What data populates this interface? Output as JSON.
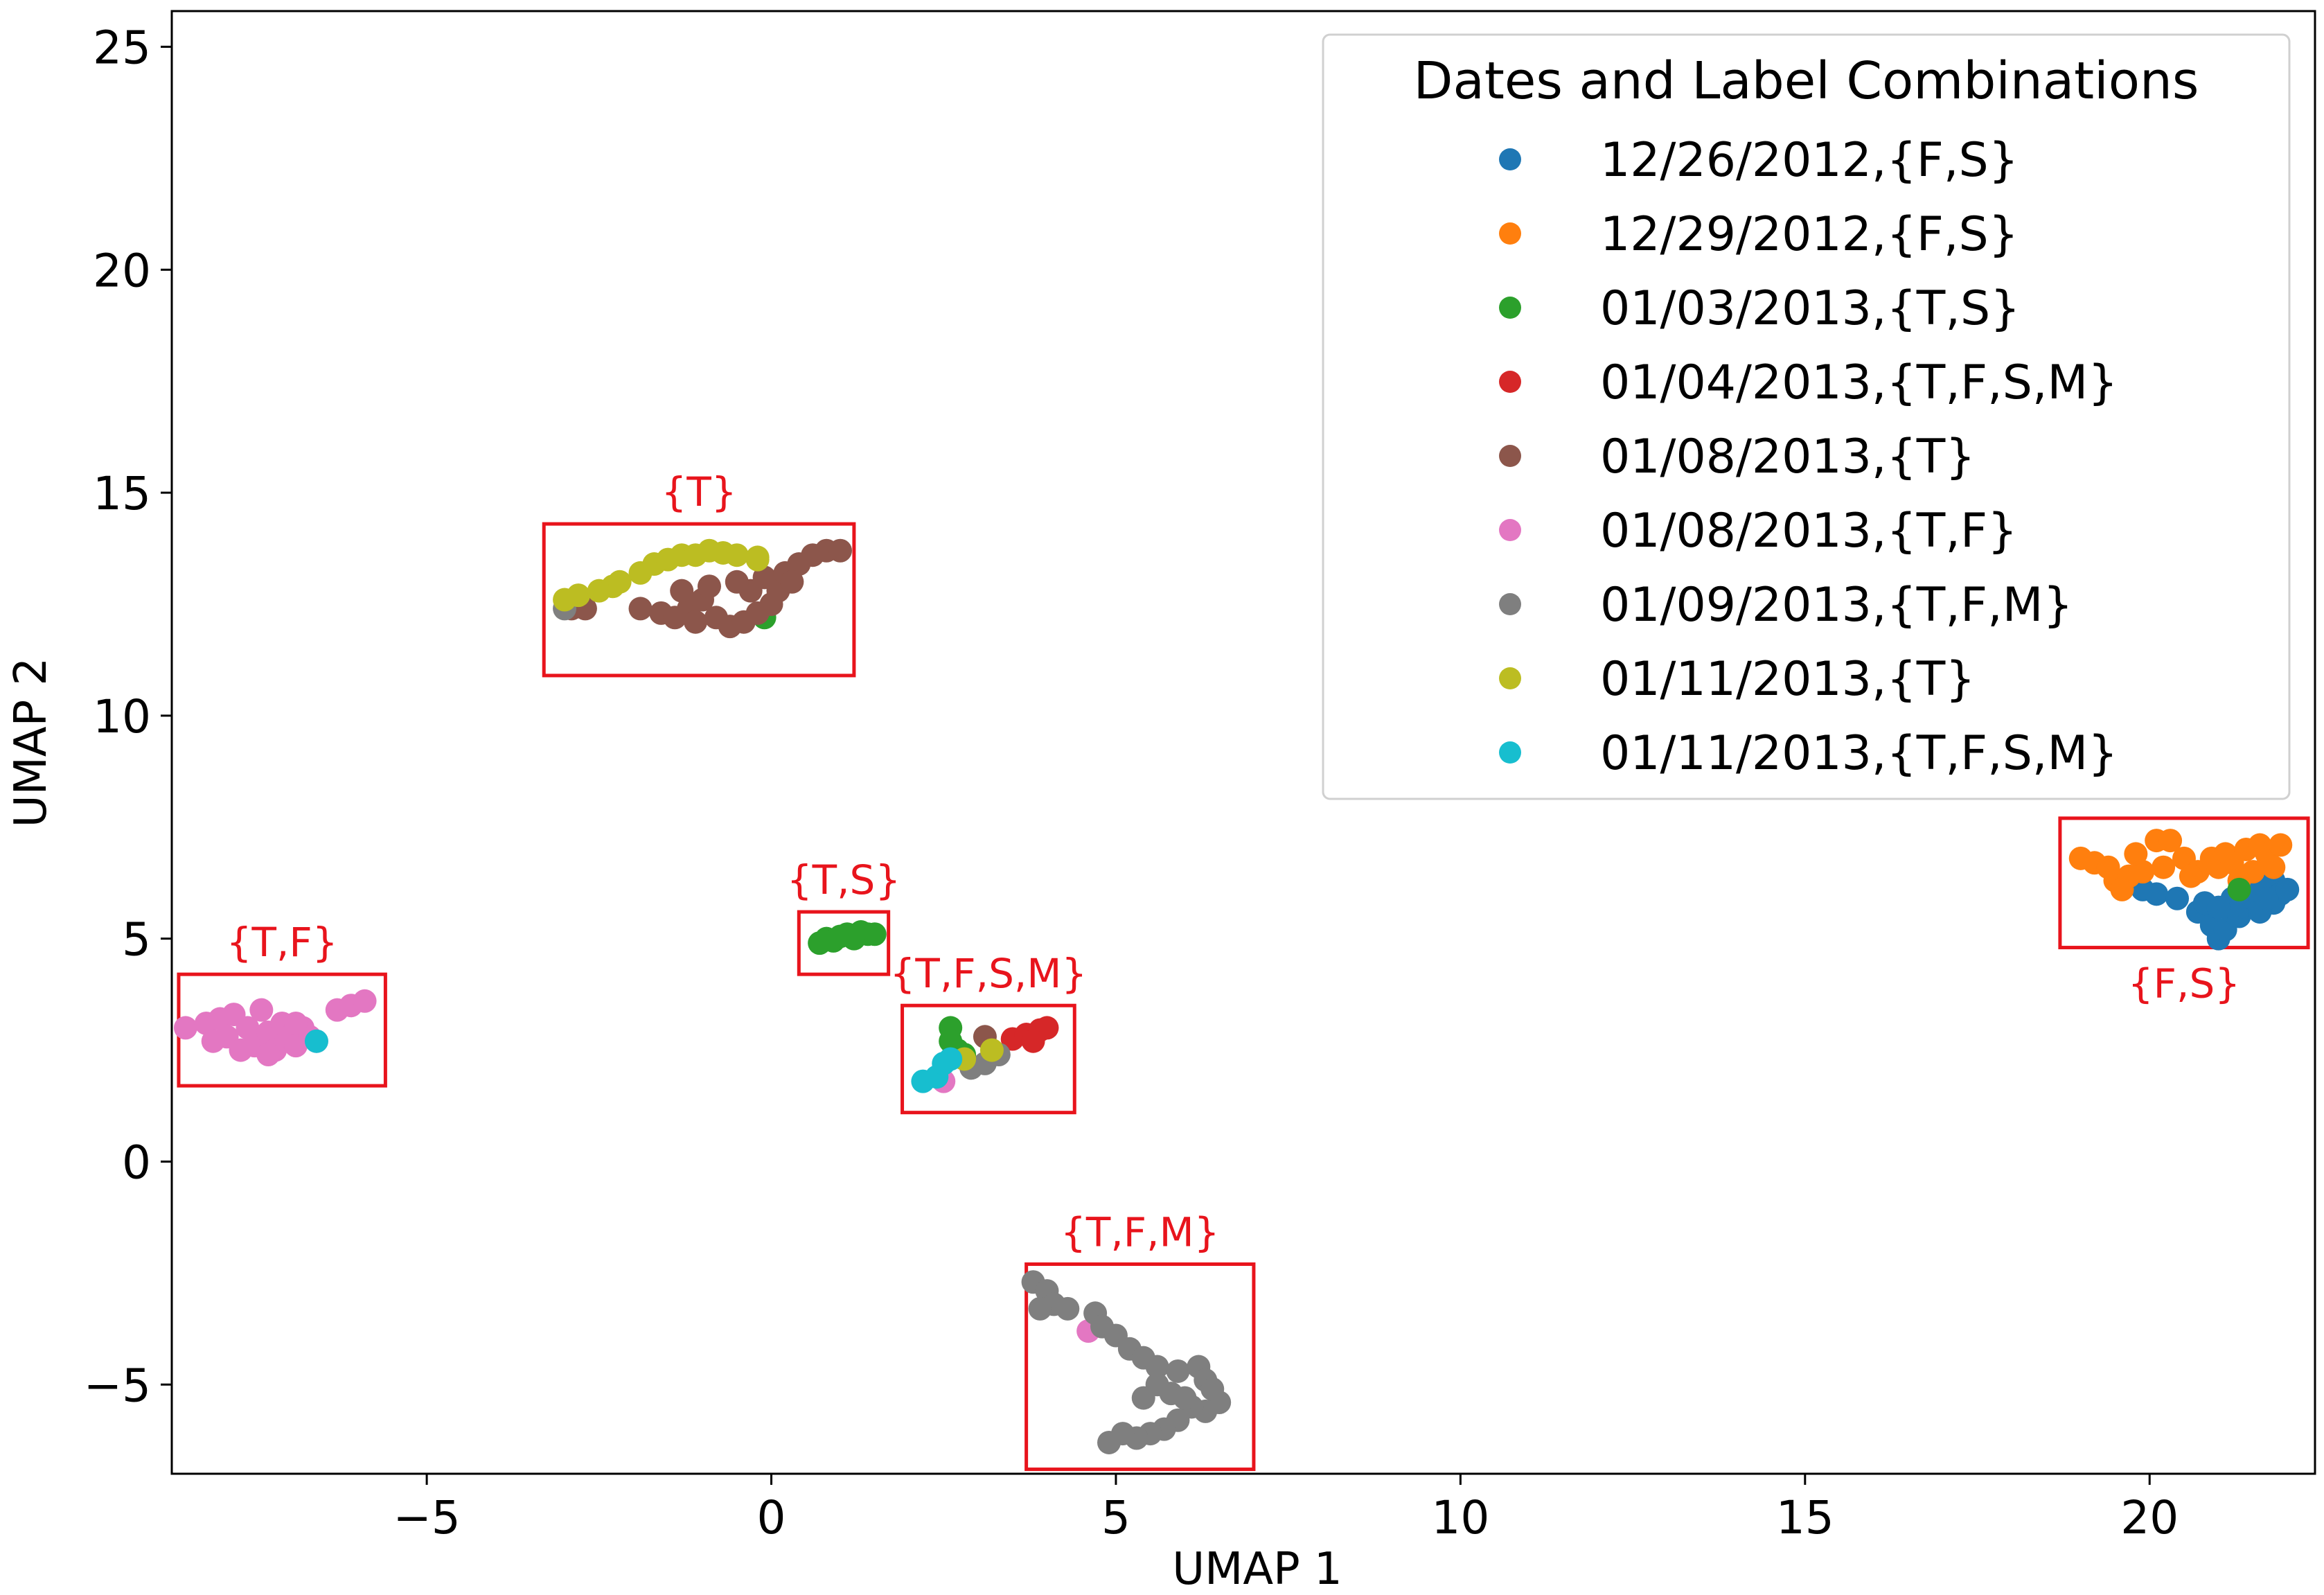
{
  "chart_data": {
    "type": "scatter",
    "title": "",
    "xlabel": "UMAP 1",
    "ylabel": "UMAP 2",
    "xlim": [
      -8.7,
      22.4
    ],
    "ylim": [
      -7.0,
      25.8
    ],
    "xticks": [
      -5,
      0,
      5,
      10,
      15,
      20
    ],
    "yticks": [
      -5,
      0,
      5,
      10,
      15,
      20,
      25
    ],
    "grid": false,
    "legend": {
      "title": "Dates and Label Combinations",
      "placement": "top-right"
    },
    "series": [
      {
        "name": "12/26/2012,{F,S}",
        "color": "#1f77b4",
        "points": [
          [
            19.9,
            6.1
          ],
          [
            20.1,
            6.0
          ],
          [
            20.4,
            5.9
          ],
          [
            20.7,
            5.6
          ],
          [
            20.9,
            5.3
          ],
          [
            21.0,
            5.0
          ],
          [
            21.1,
            5.2
          ],
          [
            21.2,
            5.6
          ],
          [
            21.3,
            5.5
          ],
          [
            21.4,
            5.7
          ],
          [
            21.5,
            5.9
          ],
          [
            21.6,
            6.2
          ],
          [
            21.7,
            6.6
          ],
          [
            21.8,
            6.3
          ],
          [
            21.9,
            6.0
          ],
          [
            21.8,
            5.8
          ],
          [
            21.6,
            5.6
          ],
          [
            21.5,
            6.1
          ],
          [
            21.7,
            5.9
          ],
          [
            22.0,
            6.1
          ],
          [
            21.2,
            5.9
          ],
          [
            20.8,
            5.8
          ],
          [
            21.0,
            5.7
          ]
        ]
      },
      {
        "name": "12/29/2012,{F,S}",
        "color": "#ff7f0e",
        "points": [
          [
            19.0,
            6.8
          ],
          [
            19.2,
            6.7
          ],
          [
            19.4,
            6.6
          ],
          [
            19.5,
            6.3
          ],
          [
            19.7,
            6.4
          ],
          [
            19.6,
            6.1
          ],
          [
            19.9,
            6.5
          ],
          [
            20.1,
            7.2
          ],
          [
            20.3,
            7.2
          ],
          [
            20.5,
            6.8
          ],
          [
            20.7,
            6.5
          ],
          [
            20.9,
            6.8
          ],
          [
            21.1,
            6.9
          ],
          [
            21.0,
            6.6
          ],
          [
            21.2,
            6.7
          ],
          [
            21.4,
            7.0
          ],
          [
            21.6,
            7.1
          ],
          [
            21.7,
            6.9
          ],
          [
            21.9,
            7.1
          ],
          [
            21.5,
            6.5
          ],
          [
            21.8,
            6.6
          ],
          [
            20.6,
            6.4
          ],
          [
            21.3,
            6.3
          ],
          [
            20.2,
            6.6
          ],
          [
            19.8,
            6.9
          ]
        ]
      },
      {
        "name": "01/03/2013,{T,S}",
        "color": "#2ca02c",
        "points": [
          [
            0.7,
            4.9
          ],
          [
            0.8,
            5.0
          ],
          [
            0.9,
            4.95
          ],
          [
            1.0,
            5.05
          ],
          [
            1.1,
            5.1
          ],
          [
            1.2,
            5.0
          ],
          [
            1.3,
            5.15
          ],
          [
            1.4,
            5.1
          ],
          [
            1.5,
            5.1
          ],
          [
            -0.1,
            12.2
          ],
          [
            2.6,
            3.0
          ],
          [
            2.6,
            2.7
          ],
          [
            2.7,
            2.5
          ],
          [
            2.8,
            2.4
          ],
          [
            21.3,
            6.1
          ]
        ]
      },
      {
        "name": "01/04/2013,{T,F,S,M}",
        "color": "#d62728",
        "points": [
          [
            3.5,
            2.75
          ],
          [
            3.7,
            2.85
          ],
          [
            3.9,
            2.95
          ],
          [
            4.0,
            3.0
          ],
          [
            3.8,
            2.7
          ]
        ]
      },
      {
        "name": "01/08/2013,{T}",
        "color": "#8c564b",
        "points": [
          [
            -2.9,
            12.4
          ],
          [
            -2.7,
            12.4
          ],
          [
            -1.9,
            12.4
          ],
          [
            -1.6,
            12.3
          ],
          [
            -1.4,
            12.2
          ],
          [
            -1.2,
            12.4
          ],
          [
            -1.0,
            12.6
          ],
          [
            -0.8,
            12.2
          ],
          [
            -0.6,
            12.0
          ],
          [
            -0.4,
            12.1
          ],
          [
            -0.2,
            12.3
          ],
          [
            0.0,
            12.5
          ],
          [
            0.1,
            12.8
          ],
          [
            -0.3,
            12.8
          ],
          [
            -0.1,
            13.1
          ],
          [
            0.2,
            13.2
          ],
          [
            0.4,
            13.4
          ],
          [
            0.6,
            13.6
          ],
          [
            0.8,
            13.7
          ],
          [
            1.0,
            13.7
          ],
          [
            -0.5,
            13.0
          ],
          [
            -0.9,
            12.9
          ],
          [
            -1.3,
            12.8
          ],
          [
            -1.1,
            12.1
          ],
          [
            0.3,
            13.0
          ],
          [
            3.1,
            2.8
          ]
        ]
      },
      {
        "name": "01/08/2013,{T,F}",
        "color": "#e377c2",
        "points": [
          [
            -8.5,
            3.0
          ],
          [
            -8.2,
            3.1
          ],
          [
            -8.0,
            3.2
          ],
          [
            -7.9,
            2.8
          ],
          [
            -7.8,
            3.3
          ],
          [
            -7.6,
            3.0
          ],
          [
            -7.5,
            2.6
          ],
          [
            -7.4,
            3.4
          ],
          [
            -7.3,
            2.9
          ],
          [
            -7.2,
            2.5
          ],
          [
            -7.1,
            3.1
          ],
          [
            -7.0,
            2.8
          ],
          [
            -6.9,
            2.6
          ],
          [
            -6.8,
            3.0
          ],
          [
            -6.7,
            2.8
          ],
          [
            -6.6,
            2.7
          ],
          [
            -7.7,
            2.5
          ],
          [
            -8.1,
            2.7
          ],
          [
            -6.3,
            3.4
          ],
          [
            -6.1,
            3.5
          ],
          [
            -5.9,
            3.6
          ],
          [
            -6.9,
            3.1
          ],
          [
            -7.3,
            2.4
          ],
          [
            2.5,
            1.8
          ],
          [
            4.6,
            -3.8
          ]
        ]
      },
      {
        "name": "01/09/2013,{T,F,M}",
        "color": "#7f7f7f",
        "points": [
          [
            3.8,
            -2.7
          ],
          [
            4.0,
            -2.9
          ],
          [
            4.1,
            -3.2
          ],
          [
            3.9,
            -3.3
          ],
          [
            4.3,
            -3.3
          ],
          [
            4.7,
            -3.4
          ],
          [
            4.8,
            -3.7
          ],
          [
            5.0,
            -3.9
          ],
          [
            5.2,
            -4.2
          ],
          [
            5.4,
            -4.4
          ],
          [
            5.6,
            -4.6
          ],
          [
            5.9,
            -4.7
          ],
          [
            6.2,
            -4.6
          ],
          [
            6.3,
            -4.9
          ],
          [
            6.4,
            -5.1
          ],
          [
            6.5,
            -5.4
          ],
          [
            6.3,
            -5.6
          ],
          [
            6.1,
            -5.5
          ],
          [
            5.9,
            -5.8
          ],
          [
            5.7,
            -6.0
          ],
          [
            5.5,
            -6.1
          ],
          [
            5.3,
            -6.2
          ],
          [
            5.1,
            -6.1
          ],
          [
            4.9,
            -6.3
          ],
          [
            5.8,
            -5.2
          ],
          [
            5.6,
            -5.0
          ],
          [
            6.0,
            -5.3
          ],
          [
            5.4,
            -5.3
          ],
          [
            2.9,
            2.1
          ],
          [
            3.1,
            2.2
          ],
          [
            3.3,
            2.4
          ],
          [
            -3.0,
            12.4
          ]
        ]
      },
      {
        "name": "01/11/2013,{T}",
        "color": "#bcbd22",
        "points": [
          [
            -3.0,
            12.6
          ],
          [
            -2.8,
            12.7
          ],
          [
            -2.5,
            12.8
          ],
          [
            -2.3,
            12.9
          ],
          [
            -2.2,
            13.0
          ],
          [
            -1.9,
            13.2
          ],
          [
            -1.7,
            13.4
          ],
          [
            -1.5,
            13.5
          ],
          [
            -1.3,
            13.6
          ],
          [
            -1.1,
            13.6
          ],
          [
            -0.9,
            13.7
          ],
          [
            -0.7,
            13.65
          ],
          [
            -0.5,
            13.6
          ],
          [
            -0.2,
            13.55
          ],
          [
            -0.2,
            13.5
          ],
          [
            3.2,
            2.5
          ],
          [
            2.8,
            2.3
          ]
        ]
      },
      {
        "name": "01/11/2013,{T,F,S,M}",
        "color": "#17becf",
        "points": [
          [
            2.2,
            1.8
          ],
          [
            2.4,
            1.9
          ],
          [
            2.5,
            2.2
          ],
          [
            2.6,
            2.3
          ],
          [
            -6.6,
            2.7
          ]
        ]
      }
    ],
    "annotations": [
      {
        "label": "{T}",
        "box": {
          "x0": -3.3,
          "x1": 1.2,
          "y0": 10.9,
          "y1": 14.3
        }
      },
      {
        "label": "{T,S}",
        "box": {
          "x0": 0.4,
          "x1": 1.7,
          "y0": 4.2,
          "y1": 5.6
        }
      },
      {
        "label": "{T,F}",
        "box": {
          "x0": -8.6,
          "x1": -5.6,
          "y0": 1.7,
          "y1": 4.2
        }
      },
      {
        "label": "{T,F,S,M}",
        "box": {
          "x0": 1.9,
          "x1": 4.4,
          "y0": 1.1,
          "y1": 3.5
        }
      },
      {
        "label": "{T,F,M}",
        "box": {
          "x0": 3.7,
          "x1": 7.0,
          "y0": -6.9,
          "y1": -2.3
        }
      },
      {
        "label": "{F,S}",
        "box": {
          "x0": 18.7,
          "x1": 22.3,
          "y0": 4.8,
          "y1": 7.7
        }
      }
    ]
  }
}
